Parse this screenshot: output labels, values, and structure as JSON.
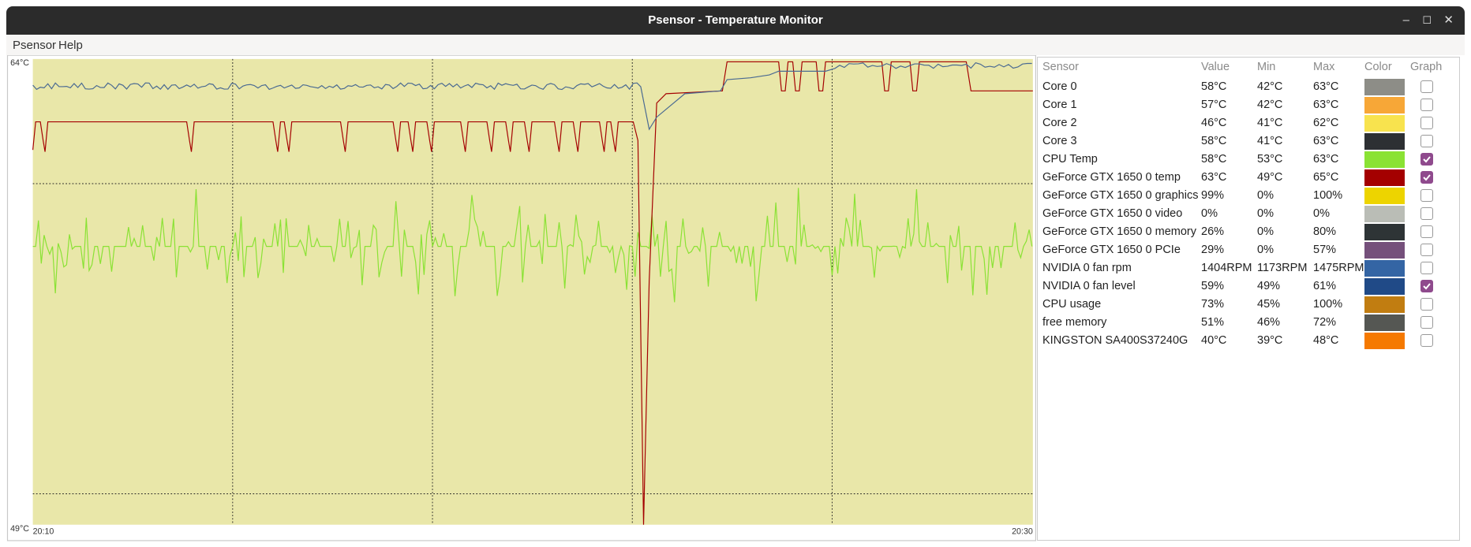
{
  "window": {
    "title": "Psensor - Temperature Monitor"
  },
  "menu": [
    "Psensor",
    "Help"
  ],
  "graph": {
    "y_max_label": "64°C",
    "y_min_label": "49°C",
    "x_start_label": "20:10",
    "x_end_label": "20:30"
  },
  "table": {
    "columns": [
      "Sensor",
      "Value",
      "Min",
      "Max",
      "Color",
      "Graph"
    ],
    "rows": [
      {
        "sensor": "Core 0",
        "value": "58°C",
        "min": "42°C",
        "max": "63°C",
        "color": "#8d8d87",
        "graph": false
      },
      {
        "sensor": "Core 1",
        "value": "57°C",
        "min": "42°C",
        "max": "63°C",
        "color": "#f7a737",
        "graph": false
      },
      {
        "sensor": "Core 2",
        "value": "46°C",
        "min": "41°C",
        "max": "62°C",
        "color": "#f8e34e",
        "graph": false
      },
      {
        "sensor": "Core 3",
        "value": "58°C",
        "min": "41°C",
        "max": "63°C",
        "color": "#2d3033",
        "graph": false
      },
      {
        "sensor": "CPU Temp",
        "value": "58°C",
        "min": "53°C",
        "max": "63°C",
        "color": "#8ae234",
        "graph": true
      },
      {
        "sensor": "GeForce GTX 1650 0 temp",
        "value": "63°C",
        "min": "49°C",
        "max": "65°C",
        "color": "#a40000",
        "graph": true
      },
      {
        "sensor": "GeForce GTX 1650 0 graphics",
        "value": "99%",
        "min": "0%",
        "max": "100%",
        "color": "#edd400",
        "graph": false
      },
      {
        "sensor": "GeForce GTX 1650 0 video",
        "value": "0%",
        "min": "0%",
        "max": "0%",
        "color": "#babdb6",
        "graph": false
      },
      {
        "sensor": "GeForce GTX 1650 0 memory",
        "value": "26%",
        "min": "0%",
        "max": "80%",
        "color": "#2e3436",
        "graph": false
      },
      {
        "sensor": "GeForce GTX 1650 0 PCIe",
        "value": "29%",
        "min": "0%",
        "max": "57%",
        "color": "#75507b",
        "graph": false
      },
      {
        "sensor": "NVIDIA 0 fan rpm",
        "value": "1404RPM",
        "min": "1173RPM",
        "max": "1475RPM",
        "color": "#3465a4",
        "graph": false
      },
      {
        "sensor": "NVIDIA 0 fan level",
        "value": "59%",
        "min": "49%",
        "max": "61%",
        "color": "#204a87",
        "graph": true
      },
      {
        "sensor": "CPU usage",
        "value": "73%",
        "min": "45%",
        "max": "100%",
        "color": "#c17d11",
        "graph": false
      },
      {
        "sensor": "free memory",
        "value": "51%",
        "min": "46%",
        "max": "72%",
        "color": "#555753",
        "graph": false
      },
      {
        "sensor": "KINGSTON SA400S37240G",
        "value": "40°C",
        "min": "39°C",
        "max": "48°C",
        "color": "#f57900",
        "graph": false
      }
    ]
  }
}
